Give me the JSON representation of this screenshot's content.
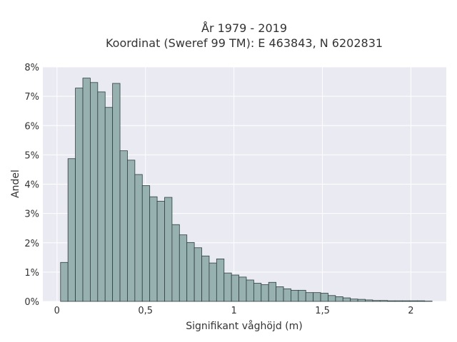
{
  "chart_data": {
    "type": "bar",
    "title": [
      "År 1979 - 2019",
      "Koordinat (Sweref 99 TM): E 463843, N 6202831"
    ],
    "xlabel": "Signifikant våghöjd (m)",
    "ylabel": "Andel",
    "xlim": [
      -0.08,
      2.2
    ],
    "ylim": [
      0,
      8
    ],
    "xticks": [
      0,
      0.5,
      1,
      1.5,
      2
    ],
    "xtick_labels": [
      "0",
      "0,5",
      "1",
      "1,5",
      "2"
    ],
    "yticks": [
      0,
      1,
      2,
      3,
      4,
      5,
      6,
      7,
      8
    ],
    "ytick_labels": [
      "0%",
      "1%",
      "2%",
      "3%",
      "4%",
      "5%",
      "6%",
      "7%",
      "8%"
    ],
    "grid": true,
    "bin_start": 0.02,
    "bin_width": 0.042,
    "values": [
      1.33,
      4.87,
      7.28,
      7.62,
      7.47,
      7.15,
      6.62,
      7.44,
      5.14,
      4.82,
      4.33,
      3.95,
      3.57,
      3.42,
      3.55,
      2.62,
      2.27,
      2.01,
      1.83,
      1.55,
      1.31,
      1.45,
      0.97,
      0.9,
      0.83,
      0.73,
      0.62,
      0.57,
      0.65,
      0.5,
      0.43,
      0.38,
      0.38,
      0.3,
      0.3,
      0.28,
      0.2,
      0.16,
      0.12,
      0.08,
      0.07,
      0.05,
      0.03,
      0.03,
      0.02,
      0.02,
      0.02,
      0.02,
      0.02,
      0.01
    ],
    "colors": {
      "bar_fill": "#97b0b0",
      "bar_stroke": "#2f3e3e",
      "plot_background": "#eaeaf2",
      "grid": "#ffffff"
    }
  }
}
